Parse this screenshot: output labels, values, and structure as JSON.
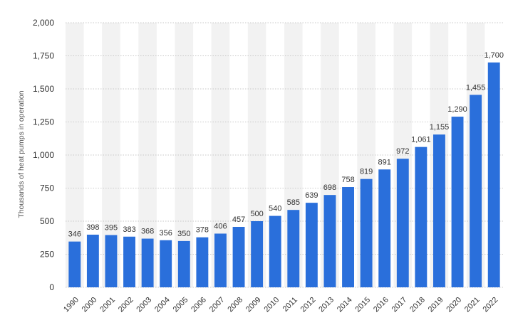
{
  "chart_data": {
    "type": "bar",
    "ylabel": "Thousands of heat pumps in operation",
    "xlabel": "",
    "ylim": [
      0,
      2000
    ],
    "yticks": [
      0,
      250,
      500,
      750,
      1000,
      1250,
      1500,
      1750,
      2000
    ],
    "ytick_labels": [
      "0",
      "250",
      "500",
      "750",
      "1,000",
      "1,250",
      "1,500",
      "1,750",
      "2,000"
    ],
    "grid": true,
    "categories": [
      "1990",
      "2000",
      "2001",
      "2002",
      "2003",
      "2004",
      "2005",
      "2006",
      "2007",
      "2008",
      "2009",
      "2010",
      "2011",
      "2012",
      "2013",
      "2014",
      "2015",
      "2016",
      "2017",
      "2018",
      "2019",
      "2020",
      "2021",
      "2022"
    ],
    "values": [
      346,
      398,
      395,
      383,
      368,
      356,
      350,
      378,
      406,
      457,
      500,
      540,
      585,
      639,
      698,
      758,
      819,
      891,
      972,
      1061,
      1155,
      1290,
      1455,
      1700
    ],
    "value_labels": [
      "346",
      "398",
      "395",
      "383",
      "368",
      "356",
      "350",
      "378",
      "406",
      "457",
      "500",
      "540",
      "585",
      "639",
      "698",
      "758",
      "819",
      "891",
      "972",
      "1,061",
      "1,155",
      "1,290",
      "1,455",
      "1,700"
    ],
    "colors": {
      "bar": "#2a6fdb",
      "band": "#f2f2f2",
      "grid": "#c8c8c8"
    }
  }
}
